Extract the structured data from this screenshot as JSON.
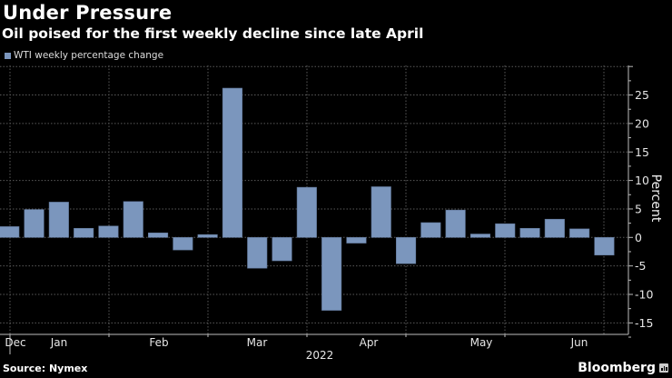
{
  "header": {
    "title": "Under Pressure",
    "subtitle": "Oil poised for the first weekly decline since late April"
  },
  "footer": {
    "source": "Source: Nymex",
    "brand": "Bloomberg"
  },
  "colors": {
    "bar": "#7b96bd",
    "background": "#000000",
    "grid": "#555555"
  },
  "chart_data": {
    "type": "bar",
    "title": "Under Pressure",
    "subtitle": "Oil poised for the first weekly decline since late April",
    "legend": [
      "WTI weekly percentage change"
    ],
    "legend_position": "top-left",
    "xlabel": "2022",
    "ylabel": "Percent",
    "ylim": [
      -17,
      30
    ],
    "yticks": [
      25,
      20,
      15,
      10,
      5,
      0,
      -5,
      -10,
      -15
    ],
    "ytick_labels": [
      "25",
      "20",
      "15",
      "10",
      "5",
      "0",
      "-5",
      "-10",
      "-15"
    ],
    "month_labels": [
      "Dec",
      "Jan",
      "Feb",
      "Mar",
      "Apr",
      "May",
      "Jun"
    ],
    "year_label": "2022",
    "grid": true,
    "series": [
      {
        "name": "WTI weekly percentage change",
        "values": [
          1.9,
          4.9,
          6.2,
          1.6,
          2.0,
          6.3,
          0.8,
          -2.2,
          0.5,
          26.2,
          -5.4,
          -4.1,
          8.8,
          -12.8,
          -1.0,
          8.9,
          -4.6,
          2.6,
          4.8,
          0.6,
          2.4,
          1.6,
          3.2,
          1.5,
          -3.1
        ]
      }
    ]
  }
}
